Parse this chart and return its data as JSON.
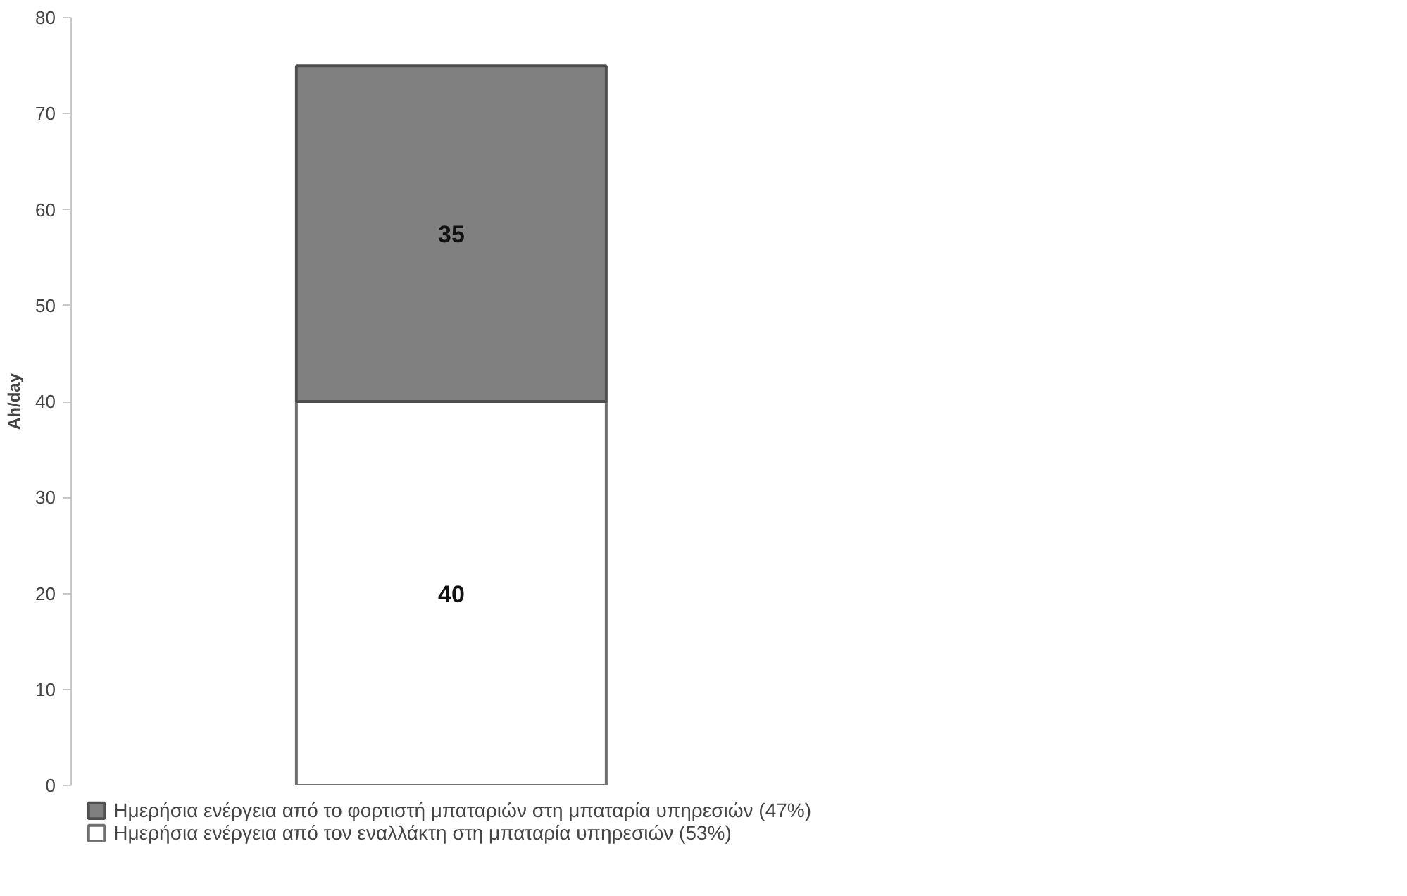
{
  "chart_data": {
    "type": "bar",
    "stacked": true,
    "categories": [
      null
    ],
    "ylabel": "Ah/day",
    "series": [
      {
        "name": "Ημερήσια ενέργεια από τον εναλλάκτη στη μπαταρία υπηρεσιών (53%)",
        "color": "#ffffff",
        "values": [
          40
        ]
      },
      {
        "name": "Ημερήσια ενέργεια από το φορτιστή μπαταριών στη μπαταρία υπηρεσιών (47%)",
        "color": "#808080",
        "values": [
          35
        ]
      }
    ],
    "ylim": [
      0,
      80
    ],
    "yticks": [
      0,
      10,
      20,
      30,
      40,
      50,
      60,
      70,
      80
    ],
    "data_labels": true,
    "grid": false,
    "legend": "bottom",
    "tick_labels": "y"
  }
}
